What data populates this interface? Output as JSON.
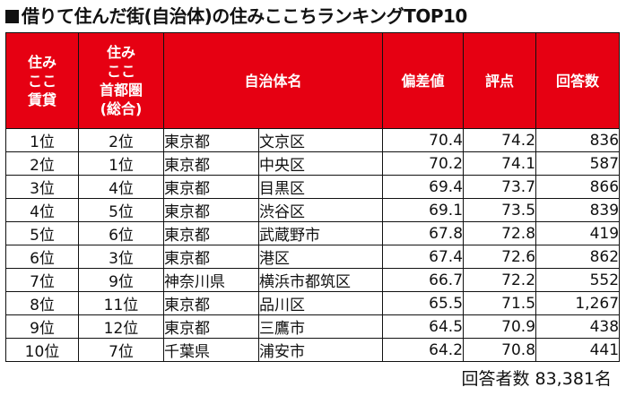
{
  "title": "借りて住んだ街(自治体)の住みここちランキングTOP10",
  "headers": {
    "rank_rental": [
      "住み",
      "ここ",
      "賃貸"
    ],
    "rank_metro": [
      "住み",
      "ここ",
      "首都圏",
      "(総合)"
    ],
    "municipality": "自治体名",
    "deviation": "偏差値",
    "score": "評点",
    "responses": "回答数"
  },
  "rows": [
    {
      "rank_rental": "1位",
      "rank_metro": "2位",
      "prefecture": "東京都",
      "city": "文京区",
      "deviation": "70.4",
      "score": "74.2",
      "responses": "836"
    },
    {
      "rank_rental": "2位",
      "rank_metro": "1位",
      "prefecture": "東京都",
      "city": "中央区",
      "deviation": "70.2",
      "score": "74.1",
      "responses": "587"
    },
    {
      "rank_rental": "3位",
      "rank_metro": "4位",
      "prefecture": "東京都",
      "city": "目黒区",
      "deviation": "69.4",
      "score": "73.7",
      "responses": "866"
    },
    {
      "rank_rental": "4位",
      "rank_metro": "5位",
      "prefecture": "東京都",
      "city": "渋谷区",
      "deviation": "69.1",
      "score": "73.5",
      "responses": "839"
    },
    {
      "rank_rental": "5位",
      "rank_metro": "6位",
      "prefecture": "東京都",
      "city": "武蔵野市",
      "deviation": "67.8",
      "score": "72.8",
      "responses": "419"
    },
    {
      "rank_rental": "6位",
      "rank_metro": "3位",
      "prefecture": "東京都",
      "city": "港区",
      "deviation": "67.4",
      "score": "72.6",
      "responses": "862"
    },
    {
      "rank_rental": "7位",
      "rank_metro": "9位",
      "prefecture": "神奈川県",
      "city": "横浜市都筑区",
      "deviation": "66.7",
      "score": "72.2",
      "responses": "552"
    },
    {
      "rank_rental": "8位",
      "rank_metro": "11位",
      "prefecture": "東京都",
      "city": "品川区",
      "deviation": "65.5",
      "score": "71.5",
      "responses": "1,267"
    },
    {
      "rank_rental": "9位",
      "rank_metro": "12位",
      "prefecture": "東京都",
      "city": "三鷹市",
      "deviation": "64.5",
      "score": "70.9",
      "responses": "438"
    },
    {
      "rank_rental": "10位",
      "rank_metro": "7位",
      "prefecture": "千葉県",
      "city": "浦安市",
      "deviation": "64.2",
      "score": "70.8",
      "responses": "441"
    }
  ],
  "footer": {
    "respondents": "回答者数 83,381名"
  },
  "colors": {
    "header_bg": "#e60012",
    "header_text": "#ffffff"
  }
}
